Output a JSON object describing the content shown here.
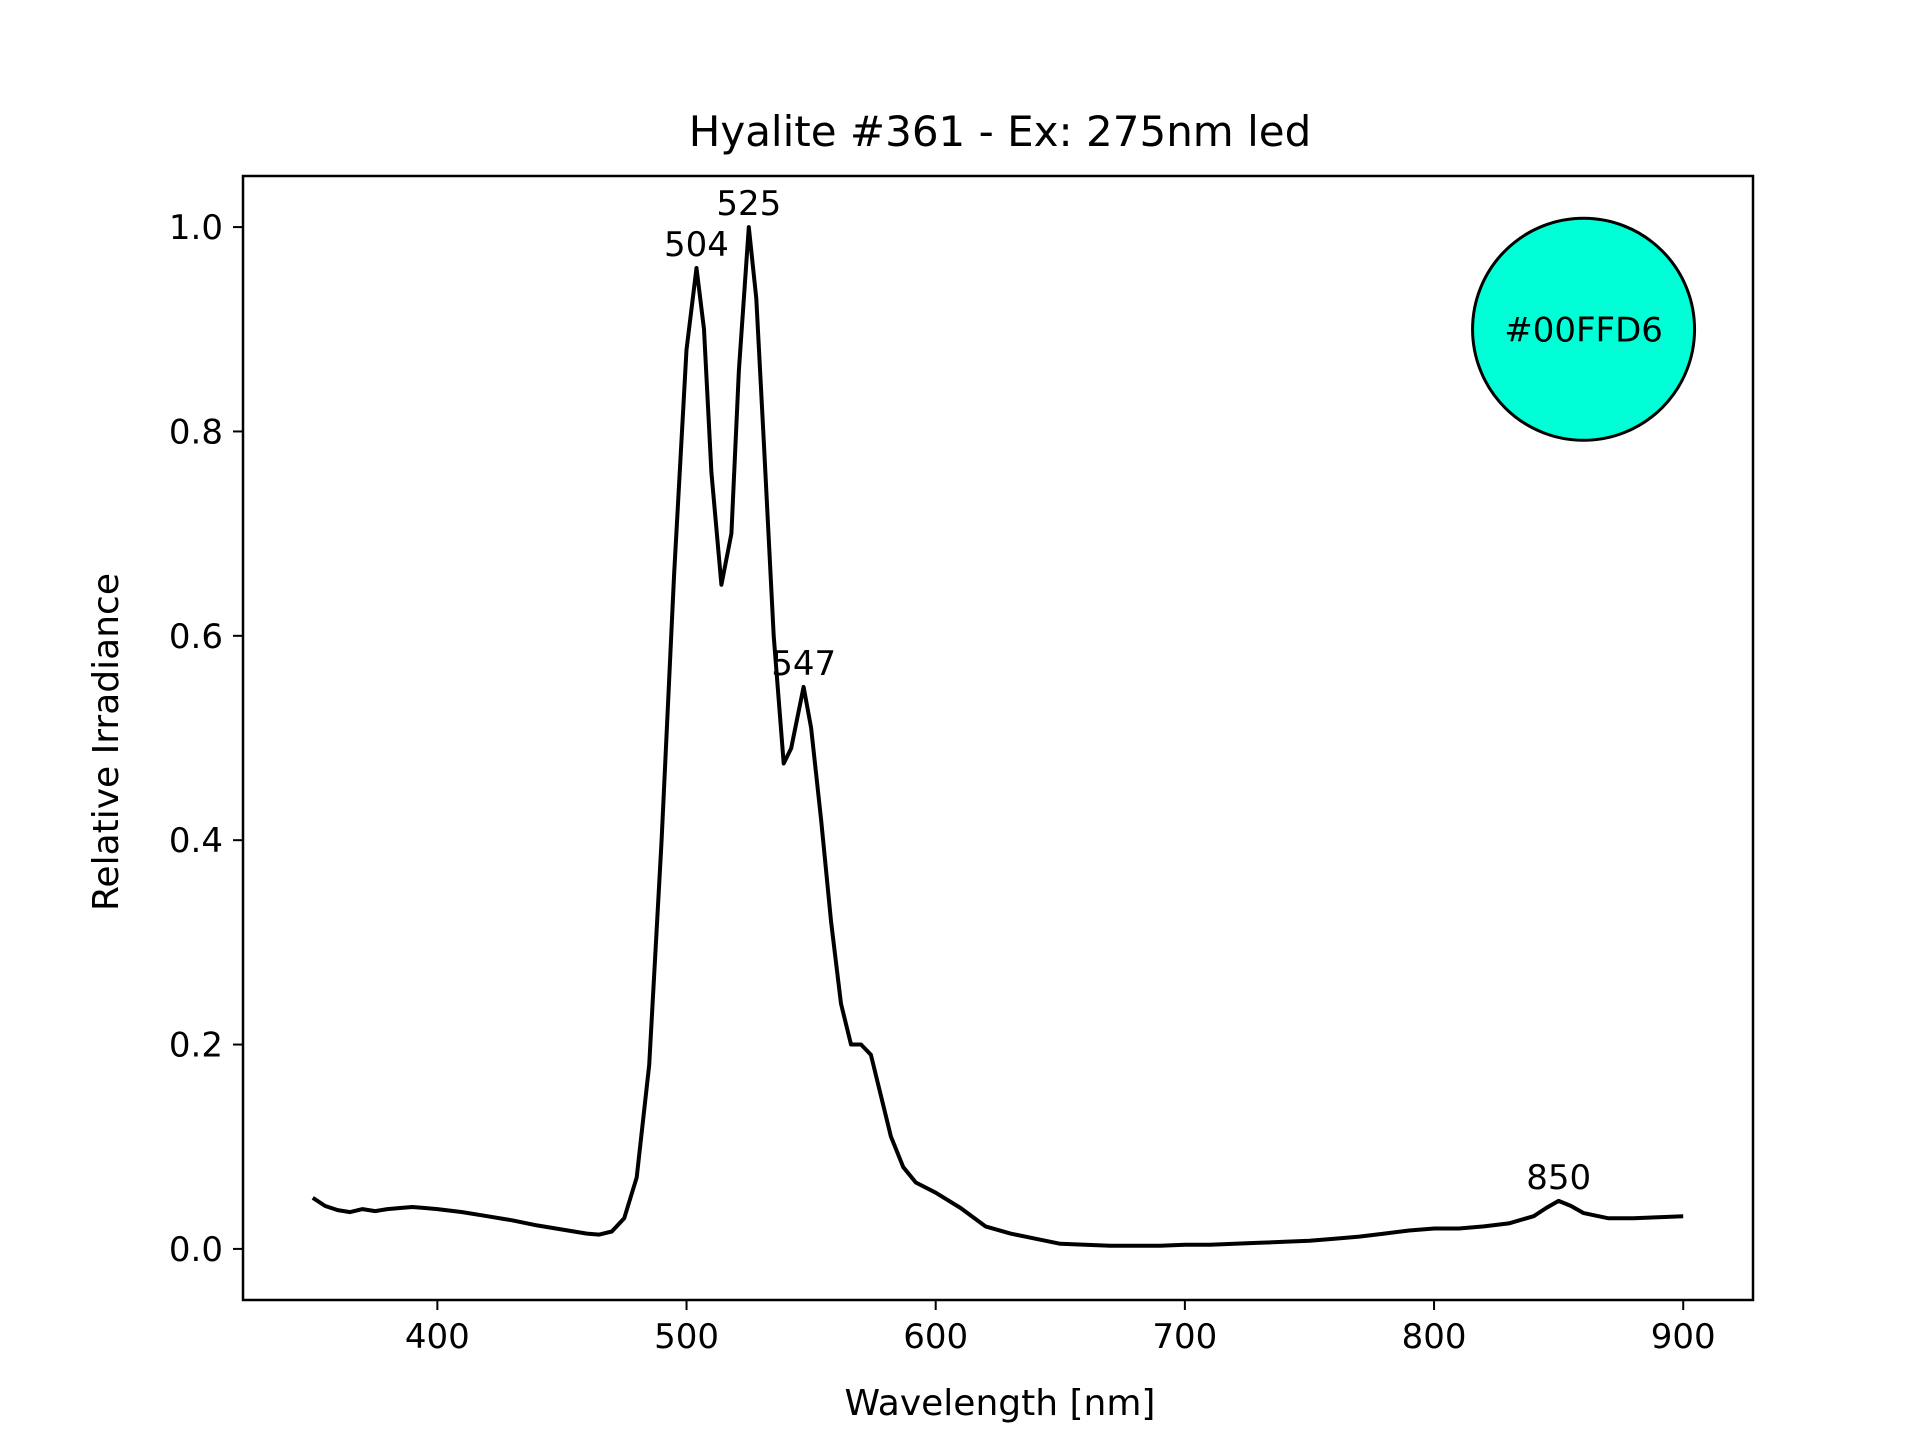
{
  "chart_data": {
    "type": "line",
    "title": "Hyalite #361 - Ex: 275nm led",
    "xlabel": "Wavelength [nm]",
    "ylabel": "Relative Irradiance",
    "xlim": [
      322,
      928
    ],
    "ylim": [
      -0.05,
      1.05
    ],
    "xticks": [
      400,
      500,
      600,
      700,
      800,
      900
    ],
    "yticks": [
      0.0,
      0.2,
      0.4,
      0.6,
      0.8,
      1.0
    ],
    "grid": false,
    "series": [
      {
        "line_color": "#000000",
        "points": [
          [
            350,
            0.05
          ],
          [
            355,
            0.042
          ],
          [
            360,
            0.038
          ],
          [
            365,
            0.036
          ],
          [
            370,
            0.039
          ],
          [
            375,
            0.037
          ],
          [
            380,
            0.039
          ],
          [
            385,
            0.04
          ],
          [
            390,
            0.041
          ],
          [
            395,
            0.04
          ],
          [
            400,
            0.039
          ],
          [
            410,
            0.036
          ],
          [
            420,
            0.032
          ],
          [
            430,
            0.028
          ],
          [
            440,
            0.023
          ],
          [
            450,
            0.019
          ],
          [
            460,
            0.015
          ],
          [
            465,
            0.014
          ],
          [
            470,
            0.017
          ],
          [
            475,
            0.03
          ],
          [
            480,
            0.07
          ],
          [
            485,
            0.18
          ],
          [
            490,
            0.4
          ],
          [
            495,
            0.66
          ],
          [
            500,
            0.88
          ],
          [
            504,
            0.96
          ],
          [
            507,
            0.9
          ],
          [
            510,
            0.76
          ],
          [
            514,
            0.65
          ],
          [
            518,
            0.7
          ],
          [
            521,
            0.86
          ],
          [
            525,
            1.0
          ],
          [
            528,
            0.93
          ],
          [
            531,
            0.79
          ],
          [
            535,
            0.6
          ],
          [
            539,
            0.475
          ],
          [
            542,
            0.49
          ],
          [
            547,
            0.55
          ],
          [
            550,
            0.51
          ],
          [
            554,
            0.42
          ],
          [
            558,
            0.32
          ],
          [
            562,
            0.24
          ],
          [
            566,
            0.2
          ],
          [
            570,
            0.2
          ],
          [
            574,
            0.19
          ],
          [
            578,
            0.15
          ],
          [
            582,
            0.11
          ],
          [
            587,
            0.08
          ],
          [
            592,
            0.065
          ],
          [
            600,
            0.055
          ],
          [
            610,
            0.04
          ],
          [
            620,
            0.022
          ],
          [
            630,
            0.015
          ],
          [
            640,
            0.01
          ],
          [
            650,
            0.005
          ],
          [
            660,
            0.004
          ],
          [
            670,
            0.003
          ],
          [
            680,
            0.003
          ],
          [
            690,
            0.003
          ],
          [
            700,
            0.004
          ],
          [
            710,
            0.004
          ],
          [
            720,
            0.005
          ],
          [
            730,
            0.006
          ],
          [
            740,
            0.007
          ],
          [
            750,
            0.008
          ],
          [
            760,
            0.01
          ],
          [
            770,
            0.012
          ],
          [
            780,
            0.015
          ],
          [
            790,
            0.018
          ],
          [
            800,
            0.02
          ],
          [
            810,
            0.02
          ],
          [
            820,
            0.022
          ],
          [
            830,
            0.025
          ],
          [
            840,
            0.032
          ],
          [
            845,
            0.04
          ],
          [
            850,
            0.047
          ],
          [
            855,
            0.042
          ],
          [
            860,
            0.035
          ],
          [
            870,
            0.03
          ],
          [
            880,
            0.03
          ],
          [
            890,
            0.031
          ],
          [
            900,
            0.032
          ]
        ]
      }
    ],
    "annotations": [
      {
        "text": "504",
        "x": 504,
        "y": 0.96
      },
      {
        "text": "525",
        "x": 525,
        "y": 1.0
      },
      {
        "text": "547",
        "x": 547,
        "y": 0.55
      },
      {
        "text": "850",
        "x": 850,
        "y": 0.047
      }
    ],
    "color_swatch": {
      "label": "#00FFD6",
      "fill": "#00FFD6",
      "x": 860,
      "y": 0.9
    }
  }
}
